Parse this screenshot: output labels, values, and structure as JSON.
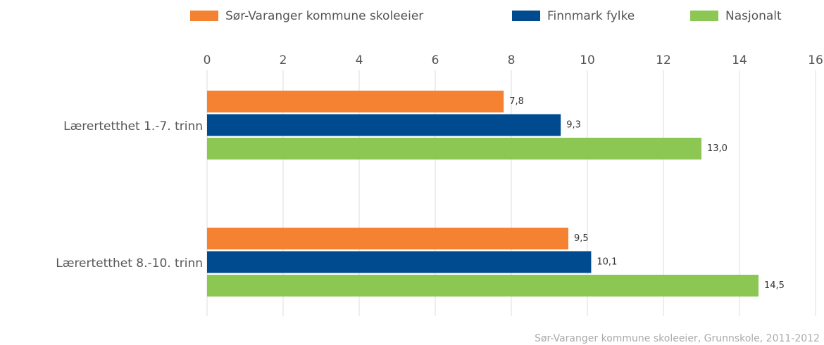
{
  "chart_data": {
    "type": "bar",
    "orientation": "horizontal",
    "categories": [
      "Lærertetthet 1.-7. trinn",
      "Lærertetthet 8.-10. trinn"
    ],
    "series": [
      {
        "name": "Sør-Varanger kommune skoleeier",
        "color": "#f58233",
        "values": [
          7.8,
          9.5
        ],
        "value_labels": [
          "7,8",
          "9,5"
        ]
      },
      {
        "name": "Finnmark fylke",
        "color": "#004a8f",
        "values": [
          9.3,
          10.1
        ],
        "value_labels": [
          "9,3",
          "10,1"
        ]
      },
      {
        "name": "Nasjonalt",
        "color": "#8cc653",
        "values": [
          13.0,
          14.5
        ],
        "value_labels": [
          "13,0",
          "14,5"
        ]
      }
    ],
    "xlim": [
      0,
      16
    ],
    "xticks": [
      0,
      2,
      4,
      6,
      8,
      10,
      12,
      14,
      16
    ],
    "grid": true,
    "legend": "top",
    "source": "Sør-Varanger kommune skoleeier, Grunnskole, 2011-2012"
  }
}
